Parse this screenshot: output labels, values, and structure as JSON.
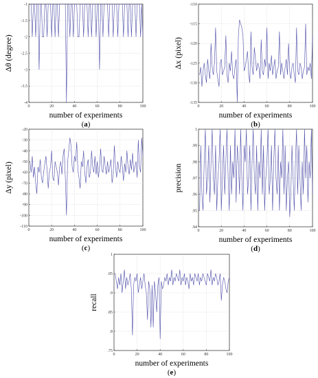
{
  "figure": {
    "line_color": "#4a4aa8",
    "grid": true
  },
  "chart_data": [
    {
      "id": "a",
      "type": "line",
      "panel_label": "(a)",
      "xlabel": "number of experiments",
      "ylabel": "Δθ (degree)",
      "xlim": [
        0,
        100
      ],
      "ylim": [
        -4,
        -1
      ],
      "xticks": [
        0,
        20,
        40,
        60,
        80,
        100
      ],
      "yticks": [
        -4,
        -3.5,
        -3,
        -2.5,
        -2,
        -1.5,
        -1
      ],
      "x_start": 1,
      "values": [
        -1,
        -1,
        -2,
        -1,
        -1,
        -2,
        -1,
        -1,
        -3,
        -1,
        -1,
        -2,
        -2,
        -1,
        -1,
        -2,
        -1,
        -1,
        -1,
        -2,
        -1,
        -1,
        -2,
        -1,
        -1,
        -2,
        -1,
        -1,
        -1,
        -1,
        -1,
        -1,
        -4,
        -1,
        -1,
        -2,
        -1,
        -1,
        -2,
        -1,
        -1,
        -1,
        -2,
        -2,
        -1,
        -1,
        -1,
        -2,
        -1,
        -1,
        -1,
        -2,
        -1,
        -1,
        -2,
        -1,
        -1,
        -1,
        -2,
        -1,
        -1,
        -3,
        -1,
        -1,
        -2,
        -1,
        -1,
        -1,
        -1,
        -2,
        -1,
        -1,
        -1,
        -2,
        -1,
        -1,
        -1,
        -2,
        -1,
        -1,
        -1,
        -1,
        -2,
        -1,
        -1,
        -1,
        -2,
        -1,
        -1,
        -2,
        -1,
        -1,
        -1,
        -2,
        -1,
        -1,
        -1,
        -2,
        -1,
        -2
      ]
    },
    {
      "id": "b",
      "type": "line",
      "panel_label": "(b)",
      "xlabel": "number of experiments",
      "ylabel": "Δx (pixel)",
      "xlim": [
        0,
        100
      ],
      "ylim": [
        -135,
        -110
      ],
      "xticks": [
        0,
        20,
        40,
        60,
        80,
        100
      ],
      "yticks": [
        -135,
        -130,
        -125,
        -120,
        -115,
        -110
      ],
      "x_start": 1,
      "values": [
        -128,
        -126,
        -131,
        -127,
        -125,
        -128,
        -130,
        -124,
        -127,
        -129,
        -120,
        -126,
        -128,
        -125,
        -116,
        -127,
        -129,
        -131,
        -125,
        -124,
        -128,
        -127,
        -126,
        -118,
        -128,
        -130,
        -125,
        -127,
        -122,
        -128,
        -129,
        -126,
        -124,
        -135,
        -118,
        -114,
        -115,
        -116,
        -118,
        -127,
        -126,
        -124,
        -122,
        -128,
        -130,
        -117,
        -126,
        -128,
        -121,
        -124,
        -127,
        -125,
        -126,
        -129,
        -119,
        -127,
        -128,
        -124,
        -126,
        -116,
        -129,
        -125,
        -127,
        -123,
        -128,
        -126,
        -124,
        -129,
        -127,
        -126,
        -117,
        -128,
        -125,
        -127,
        -129,
        -126,
        -124,
        -128,
        -120,
        -127,
        -129,
        -126,
        -125,
        -128,
        -130,
        -116,
        -127,
        -128,
        -125,
        -126,
        -129,
        -127,
        -126,
        -115,
        -128,
        -126,
        -127,
        -125,
        -129,
        -118
      ]
    },
    {
      "id": "c",
      "type": "line",
      "panel_label": "(c)",
      "xlabel": "number of experiments",
      "ylabel": "Δy (pixel)",
      "xlim": [
        0,
        100
      ],
      "ylim": [
        -110,
        -20
      ],
      "xticks": [
        0,
        20,
        40,
        60,
        80,
        100
      ],
      "yticks": [
        -110,
        -100,
        -90,
        -80,
        -70,
        -60,
        -50,
        -40,
        -30,
        -20
      ],
      "x_start": 1,
      "values": [
        -50,
        -60,
        -45,
        -65,
        -55,
        -70,
        -80,
        -55,
        -60,
        -48,
        -65,
        -70,
        -60,
        -52,
        -45,
        -58,
        -75,
        -60,
        -55,
        -40,
        -65,
        -68,
        -50,
        -55,
        -60,
        -72,
        -55,
        -50,
        -62,
        -45,
        -38,
        -65,
        -100,
        -50,
        -40,
        -28,
        -35,
        -55,
        -60,
        -45,
        -50,
        -32,
        -58,
        -65,
        -75,
        -50,
        -55,
        -40,
        -60,
        -70,
        -55,
        -48,
        -65,
        -60,
        -40,
        -55,
        -60,
        -45,
        -62,
        -50,
        -65,
        -55,
        -38,
        -58,
        -60,
        -45,
        -55,
        -62,
        -50,
        -60,
        -55,
        -48,
        -70,
        -62,
        -35,
        -55,
        -65,
        -50,
        -58,
        -60,
        -45,
        -55,
        -68,
        -52,
        -60,
        -40,
        -55,
        -62,
        -48,
        -58,
        -42,
        -60,
        -55,
        -50,
        -65,
        -30,
        -55,
        -60,
        -28,
        -45
      ]
    },
    {
      "id": "d",
      "type": "line",
      "panel_label": "(d)",
      "xlabel": "number of experiments",
      "ylabel": "precision",
      "xlim": [
        0,
        100
      ],
      "ylim": [
        0.94,
        1
      ],
      "xticks": [
        0,
        20,
        40,
        60,
        80,
        100
      ],
      "yticks": [
        0.94,
        0.95,
        0.96,
        0.97,
        0.98,
        0.99,
        1
      ],
      "x_start": 1,
      "values": [
        0.95,
        0.99,
        0.96,
        0.95,
        0.98,
        1,
        0.96,
        0.97,
        0.99,
        0.955,
        0.98,
        1,
        0.97,
        0.96,
        0.99,
        0.95,
        0.97,
        0.98,
        1,
        0.95,
        0.97,
        0.99,
        0.96,
        0.98,
        1,
        0.97,
        0.95,
        0.99,
        0.96,
        0.98,
        0.97,
        1,
        0.955,
        0.99,
        0.98,
        0.96,
        1,
        0.97,
        0.95,
        0.99,
        0.98,
        1,
        0.96,
        0.97,
        0.99,
        0.95,
        0.98,
        1,
        0.97,
        0.96,
        0.99,
        0.95,
        0.98,
        0.97,
        1,
        0.96,
        0.99,
        0.95,
        0.97,
        0.98,
        1,
        0.96,
        0.97,
        0.99,
        0.95,
        0.98,
        1,
        0.97,
        0.96,
        0.99,
        0.95,
        0.98,
        0.97,
        1,
        0.96,
        0.99,
        0.95,
        0.97,
        0.98,
        0.946,
        0.96,
        0.99,
        0.97,
        0.95,
        0.98,
        1,
        0.96,
        0.99,
        0.97,
        0.95,
        0.98,
        0.96,
        1,
        0.97,
        0.99,
        0.955,
        0.98,
        0.97,
        1,
        0.96
      ]
    },
    {
      "id": "e",
      "type": "line",
      "panel_label": "(e)",
      "xlabel": "number of experiments",
      "ylabel": "recall",
      "xlim": [
        0,
        100
      ],
      "ylim": [
        0.75,
        1
      ],
      "xticks": [
        0,
        20,
        40,
        60,
        80,
        100
      ],
      "yticks": [
        0.75,
        0.8,
        0.85,
        0.9,
        0.95,
        1
      ],
      "x_start": 1,
      "values": [
        0.95,
        0.93,
        0.91,
        0.94,
        0.92,
        0.95,
        0.9,
        0.93,
        0.96,
        0.91,
        0.94,
        0.92,
        0.93,
        0.95,
        0.91,
        0.79,
        0.92,
        0.94,
        0.93,
        0.95,
        0.9,
        0.92,
        0.94,
        0.91,
        0.93,
        0.95,
        0.92,
        0.9,
        0.83,
        0.93,
        0.91,
        0.81,
        0.92,
        0.81,
        0.93,
        0.9,
        0.85,
        0.92,
        0.94,
        0.78,
        0.93,
        0.91,
        0.92,
        0.94,
        0.93,
        0.95,
        0.92,
        0.94,
        0.93,
        0.96,
        0.92,
        0.94,
        0.93,
        0.95,
        0.94,
        0.93,
        0.96,
        0.92,
        0.94,
        0.93,
        0.95,
        0.92,
        0.94,
        0.93,
        0.91,
        0.95,
        0.93,
        0.94,
        0.92,
        0.95,
        0.94,
        0.93,
        0.95,
        0.92,
        0.94,
        0.93,
        0.95,
        0.94,
        0.93,
        0.92,
        0.95,
        0.94,
        0.93,
        0.96,
        0.92,
        0.94,
        0.93,
        0.95,
        0.94,
        0.92,
        0.93,
        0.95,
        0.88,
        0.92,
        0.94,
        0.93,
        0.91,
        0.9,
        0.93,
        0.94
      ]
    }
  ]
}
